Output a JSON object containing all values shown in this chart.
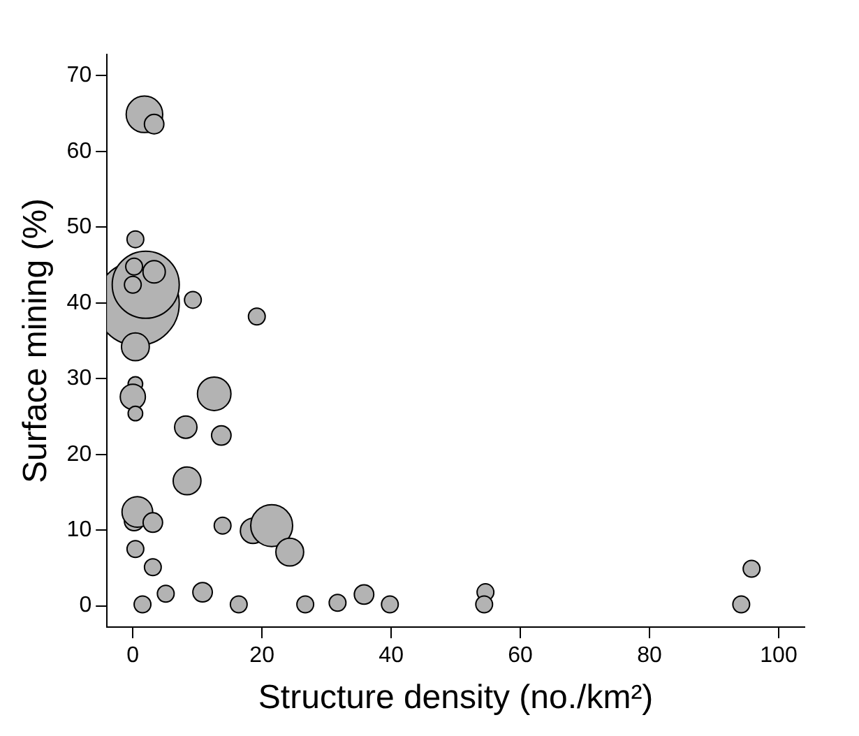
{
  "chart_data": {
    "type": "bubble",
    "xlabel": "Structure density (no./km²)",
    "ylabel": "Surface mining (%)",
    "xlim": [
      -4,
      104
    ],
    "ylim": [
      -2.8,
      72.8
    ],
    "xticks": [
      0,
      20,
      40,
      60,
      80,
      100
    ],
    "yticks": [
      0,
      10,
      20,
      30,
      40,
      50,
      60,
      70
    ],
    "grid": false,
    "legend": false,
    "series": [
      {
        "color": "#b3b3b3",
        "x": [
          0.7,
          2.0,
          1.8,
          3.3,
          0.4,
          0.2,
          3.3,
          0,
          9.3,
          0.4,
          19.2,
          0.4,
          0,
          0.4,
          12.6,
          8.2,
          13.7,
          8.4,
          0.2,
          0.7,
          3.1,
          13.9,
          18.6,
          21.5,
          24.3,
          0.4,
          3.1,
          5.1,
          1.5,
          10.8,
          16.4,
          26.7,
          31.7,
          35.8,
          39.8,
          54.6,
          54.4,
          95.8,
          94.2
        ],
        "values": [
          39.9,
          42.4,
          64.9,
          63.6,
          48.4,
          44.8,
          44.1,
          42.4,
          40.4,
          34.2,
          38.2,
          29.3,
          27.6,
          25.4,
          28.0,
          23.6,
          22.5,
          16.5,
          11.2,
          12.4,
          11.0,
          10.6,
          9.9,
          10.6,
          7.1,
          7.5,
          5.1,
          1.6,
          0.2,
          1.8,
          0.2,
          0.2,
          0.4,
          1.5,
          0.2,
          1.8,
          0.2,
          4.9,
          0.2
        ],
        "sizes": [
          1,
          0.64,
          0.19,
          0.054,
          0.04,
          0.04,
          0.071,
          0.04,
          0.04,
          0.11,
          0.04,
          0.03,
          0.09,
          0.03,
          0.16,
          0.071,
          0.054,
          0.11,
          0.054,
          0.134,
          0.054,
          0.04,
          0.09,
          0.25,
          0.11,
          0.04,
          0.04,
          0.04,
          0.04,
          0.054,
          0.04,
          0.04,
          0.04,
          0.054,
          0.04,
          0.04,
          0.04,
          0.04,
          0.04
        ]
      }
    ]
  }
}
